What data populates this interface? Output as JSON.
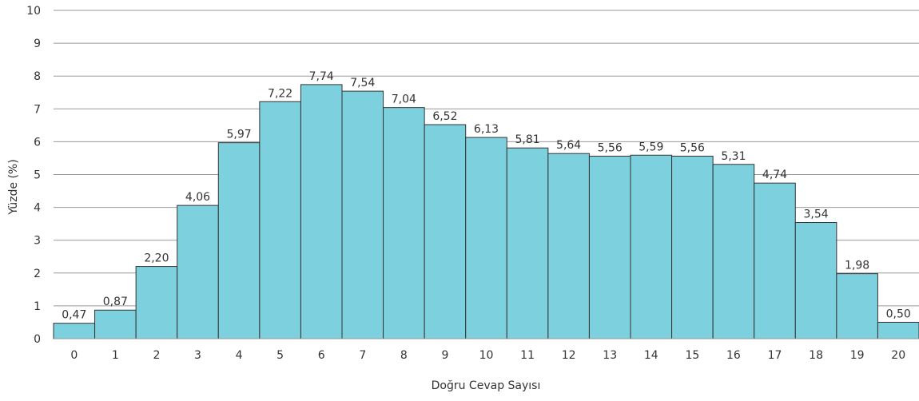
{
  "chart_data": {
    "type": "bar",
    "categories": [
      "0",
      "1",
      "2",
      "3",
      "4",
      "5",
      "6",
      "7",
      "8",
      "9",
      "10",
      "11",
      "12",
      "13",
      "14",
      "15",
      "16",
      "17",
      "18",
      "19",
      "20"
    ],
    "values": [
      0.47,
      0.87,
      2.2,
      4.06,
      5.97,
      7.22,
      7.74,
      7.54,
      7.04,
      6.52,
      6.13,
      5.81,
      5.64,
      5.56,
      5.59,
      5.56,
      5.31,
      4.74,
      3.54,
      1.98,
      0.5
    ],
    "value_labels": [
      "0,47",
      "0,87",
      "2,20",
      "4,06",
      "5,97",
      "7,22",
      "7,74",
      "7,54",
      "7,04",
      "6,52",
      "6,13",
      "5,81",
      "5,64",
      "5,56",
      "5,59",
      "5,56",
      "5,31",
      "4,74",
      "3,54",
      "1,98",
      "0,50"
    ],
    "xlabel": "Doğru Cevap Sayısı",
    "ylabel": "Yüzde (%)",
    "ylim": [
      0,
      10
    ],
    "yticks": [
      "0",
      "1",
      "2",
      "3",
      "4",
      "5",
      "6",
      "7",
      "8",
      "9",
      "10"
    ],
    "grid": "horizontal",
    "bar_color": "#7dd0dd",
    "bar_edge_color": "#333333"
  }
}
